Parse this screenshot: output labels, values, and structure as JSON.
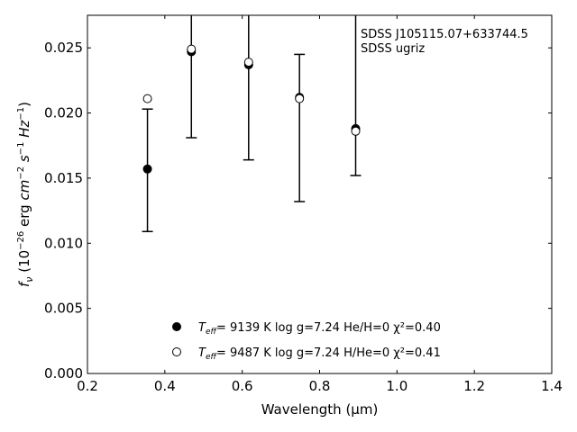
{
  "chart_data": {
    "type": "scatter",
    "title": "",
    "xlabel": "Wavelength (μm)",
    "ylabel": "fν (10⁻²⁶ erg cm⁻² s⁻¹ Hz⁻¹)",
    "xlim": [
      0.2,
      1.4
    ],
    "ylim": [
      0.0,
      0.0275
    ],
    "xticks": [
      "0.2",
      "0.4",
      "0.6",
      "0.8",
      "1.0",
      "1.2",
      "1.4"
    ],
    "yticks": [
      "0.000",
      "0.005",
      "0.010",
      "0.015",
      "0.020",
      "0.025"
    ],
    "annotation": {
      "line1": "SDSS J105115.07+633744.5",
      "line2": "SDSS ugriz"
    },
    "observed": {
      "x": [
        0.3551,
        0.4686,
        0.6166,
        0.748,
        0.8932
      ],
      "y": [
        0.0157,
        0.0247,
        0.0237,
        0.0213,
        0.0189
      ],
      "yerr_low": [
        0.0109,
        0.0181,
        0.0164,
        0.0132,
        0.0152
      ],
      "yerr_high": [
        0.0203,
        0.032,
        0.032,
        0.0245,
        0.032
      ]
    },
    "series": [
      {
        "marker": "filled-circle",
        "legend": {
          "teff_label": "T",
          "teff_sub": "eff",
          "rest": "=  9139 K  log g=7.24  He/H=0  χ²=0.40"
        },
        "x": [
          0.3551,
          0.4686,
          0.6166,
          0.748,
          0.8932
        ],
        "y": [
          0.0157,
          0.0247,
          0.0237,
          0.0212,
          0.0188
        ]
      },
      {
        "marker": "open-circle",
        "legend": {
          "teff_label": "T",
          "teff_sub": "eff",
          "rest": "=  9487 K  log g=7.24  H/He=0  χ²=0.41"
        },
        "x": [
          0.3551,
          0.4686,
          0.6166,
          0.748,
          0.8932
        ],
        "y": [
          0.0211,
          0.0249,
          0.0239,
          0.0211,
          0.0186
        ]
      }
    ]
  }
}
